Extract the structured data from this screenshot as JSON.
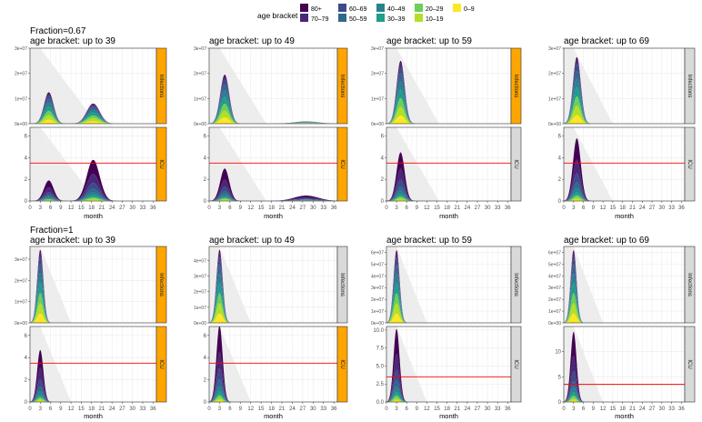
{
  "legend": {
    "title": "age bracket",
    "entries": [
      {
        "label": "80+",
        "color": "#440154"
      },
      {
        "label": "70–79",
        "color": "#482878"
      },
      {
        "label": "60–69",
        "color": "#3e4a89"
      },
      {
        "label": "50–59",
        "color": "#31688e"
      },
      {
        "label": "40–49",
        "color": "#26828e"
      },
      {
        "label": "30–39",
        "color": "#1f9e89"
      },
      {
        "label": "20–29",
        "color": "#6ece58"
      },
      {
        "label": "10–19",
        "color": "#b5de2b"
      },
      {
        "label": "0–9",
        "color": "#fde725"
      }
    ]
  },
  "colors": {
    "strip_active": "#ffa500",
    "strip_inactive": "#d9d9d9",
    "threshold_line": "#ff0000",
    "lockdown_band": "#ebebeb",
    "grid": "#ebebeb"
  },
  "chart_data": {
    "type": "area",
    "xlabel": "month",
    "x_ticks": [
      0,
      3,
      6,
      9,
      12,
      15,
      18,
      21,
      24,
      27,
      30,
      33,
      36
    ],
    "x_range": [
      0,
      37
    ],
    "row_label_prefix": "age bracket:",
    "icu_threshold": 3.5,
    "blocks": [
      {
        "fraction_label": "Fraction=0.67",
        "panels": [
          {
            "title": "age bracket:  up to 39",
            "infections": {
              "ylim": [
                0,
                30000000
              ],
              "ticks": [
                "0e+00",
                "1e+07",
                "2e+07",
                "3e+07"
              ],
              "tick_values": [
                0,
                10000000,
                20000000,
                30000000
              ],
              "peaks": [
                {
                  "t": 5.5,
                  "h": 12500000,
                  "w": 1.4
                },
                {
                  "t": 18.5,
                  "h": 8000000,
                  "w": 1.9
                }
              ],
              "strip_active": true
            },
            "icu": {
              "ylim": [
                0,
                6.8
              ],
              "ticks": [
                "0",
                "2",
                "4",
                "6"
              ],
              "tick_values": [
                0,
                2,
                4,
                6
              ],
              "peaks": [
                {
                  "t": 5.5,
                  "h": 1.9,
                  "w": 1.4
                },
                {
                  "t": 18.5,
                  "h": 3.8,
                  "w": 1.9
                }
              ],
              "strip_active": true
            }
          },
          {
            "title": "age bracket:  up to 49",
            "infections": {
              "ylim": [
                0,
                30000000
              ],
              "ticks": [
                "0e+00",
                "1e+07",
                "2e+07",
                "3e+07"
              ],
              "tick_values": [
                0,
                10000000,
                20000000,
                30000000
              ],
              "peaks": [
                {
                  "t": 4.5,
                  "h": 19500000,
                  "w": 1.3
                },
                {
                  "t": 28,
                  "h": 900000,
                  "w": 3.5
                }
              ],
              "strip_active": true
            },
            "icu": {
              "ylim": [
                0,
                6.8
              ],
              "ticks": [
                "0",
                "2",
                "4",
                "6"
              ],
              "tick_values": [
                0,
                2,
                4,
                6
              ],
              "peaks": [
                {
                  "t": 4.5,
                  "h": 3.0,
                  "w": 1.3
                },
                {
                  "t": 28,
                  "h": 0.5,
                  "w": 3.5
                }
              ],
              "strip_active": true
            }
          },
          {
            "title": "age bracket:  up to 59",
            "infections": {
              "ylim": [
                0,
                30000000
              ],
              "ticks": [
                "0e+00",
                "1e+07",
                "2e+07",
                "3e+07"
              ],
              "tick_values": [
                0,
                10000000,
                20000000,
                30000000
              ],
              "peaks": [
                {
                  "t": 4.2,
                  "h": 25000000,
                  "w": 1.2
                }
              ],
              "strip_active": true
            },
            "icu": {
              "ylim": [
                0,
                6.8
              ],
              "ticks": [
                "0",
                "2",
                "4",
                "6"
              ],
              "tick_values": [
                0,
                2,
                4,
                6
              ],
              "peaks": [
                {
                  "t": 4.2,
                  "h": 4.5,
                  "w": 1.2
                }
              ],
              "strip_active": false
            }
          },
          {
            "title": "age bracket:  up to 69",
            "infections": {
              "ylim": [
                0,
                30000000
              ],
              "ticks": [
                "0e+00",
                "1e+07",
                "2e+07",
                "3e+07"
              ],
              "tick_values": [
                0,
                10000000,
                20000000,
                30000000
              ],
              "peaks": [
                {
                  "t": 4.0,
                  "h": 26500000,
                  "w": 1.2
                }
              ],
              "strip_active": false
            },
            "icu": {
              "ylim": [
                0,
                6.8
              ],
              "ticks": [
                "0",
                "2",
                "4",
                "6"
              ],
              "tick_values": [
                0,
                2,
                4,
                6
              ],
              "peaks": [
                {
                  "t": 4.0,
                  "h": 5.8,
                  "w": 1.2
                }
              ],
              "strip_active": false
            }
          }
        ]
      },
      {
        "fraction_label": "Fraction=1",
        "panels": [
          {
            "title": "age bracket:  up to 39",
            "infections": {
              "ylim": [
                0,
                36000000
              ],
              "ticks": [
                "0e+00",
                "1e+07",
                "2e+07",
                "3e+07"
              ],
              "tick_values": [
                0,
                10000000,
                20000000,
                30000000
              ],
              "peaks": [
                {
                  "t": 3.0,
                  "h": 34500000,
                  "w": 0.9
                }
              ],
              "strip_active": true
            },
            "icu": {
              "ylim": [
                0,
                6.8
              ],
              "ticks": [
                "0",
                "2",
                "4",
                "6"
              ],
              "tick_values": [
                0,
                2,
                4,
                6
              ],
              "peaks": [
                {
                  "t": 3.0,
                  "h": 4.7,
                  "w": 0.9
                }
              ],
              "strip_active": true
            }
          },
          {
            "title": "age bracket:  up to 49",
            "infections": {
              "ylim": [
                0,
                49000000
              ],
              "ticks": [
                "0e+00",
                "1e+07",
                "2e+07",
                "3e+07",
                "4e+07"
              ],
              "tick_values": [
                0,
                10000000,
                20000000,
                30000000,
                40000000
              ],
              "peaks": [
                {
                  "t": 3.0,
                  "h": 47000000,
                  "w": 0.9
                }
              ],
              "strip_active": false
            },
            "icu": {
              "ylim": [
                0,
                6.8
              ],
              "ticks": [
                "0",
                "2",
                "4",
                "6"
              ],
              "tick_values": [
                0,
                2,
                4,
                6
              ],
              "peaks": [
                {
                  "t": 3.0,
                  "h": 6.9,
                  "w": 0.9
                }
              ],
              "strip_active": true
            }
          },
          {
            "title": "age bracket:  up to 59",
            "infections": {
              "ylim": [
                0,
                65000000
              ],
              "ticks": [
                "0e+00",
                "1e+07",
                "2e+07",
                "3e+07",
                "4e+07",
                "5e+07",
                "6e+07"
              ],
              "tick_values": [
                0,
                10000000,
                20000000,
                30000000,
                40000000,
                50000000,
                60000000
              ],
              "peaks": [
                {
                  "t": 3.0,
                  "h": 62000000,
                  "w": 0.9
                }
              ],
              "strip_active": false
            },
            "icu": {
              "ylim": [
                0,
                10.5
              ],
              "ticks": [
                "0.0",
                "2.5",
                "5.0",
                "7.5",
                "10.0"
              ],
              "tick_values": [
                0,
                2.5,
                5,
                7.5,
                10
              ],
              "peaks": [
                {
                  "t": 3.0,
                  "h": 10.2,
                  "w": 0.9
                }
              ],
              "strip_active": false
            }
          },
          {
            "title": "age bracket:  up to 69",
            "infections": {
              "ylim": [
                0,
                65000000
              ],
              "ticks": [
                "0e+00",
                "1e+07",
                "2e+07",
                "3e+07",
                "4e+07",
                "5e+07",
                "6e+07"
              ],
              "tick_values": [
                0,
                10000000,
                20000000,
                30000000,
                40000000,
                50000000,
                60000000
              ],
              "peaks": [
                {
                  "t": 3.0,
                  "h": 62000000,
                  "w": 0.9
                }
              ],
              "strip_active": false
            },
            "icu": {
              "ylim": [
                0,
                15
              ],
              "ticks": [
                "0",
                "5",
                "10"
              ],
              "tick_values": [
                0,
                5,
                10
              ],
              "peaks": [
                {
                  "t": 3.0,
                  "h": 14.0,
                  "w": 0.9
                }
              ],
              "strip_active": false
            }
          }
        ]
      }
    ],
    "strip_labels": {
      "infections": "Infections",
      "icu": "ICU"
    },
    "age_shares": [
      0.04,
      0.06,
      0.1,
      0.12,
      0.13,
      0.14,
      0.14,
      0.14,
      0.13
    ],
    "icu_shares": [
      0.34,
      0.22,
      0.14,
      0.09,
      0.07,
      0.05,
      0.04,
      0.03,
      0.02
    ]
  }
}
